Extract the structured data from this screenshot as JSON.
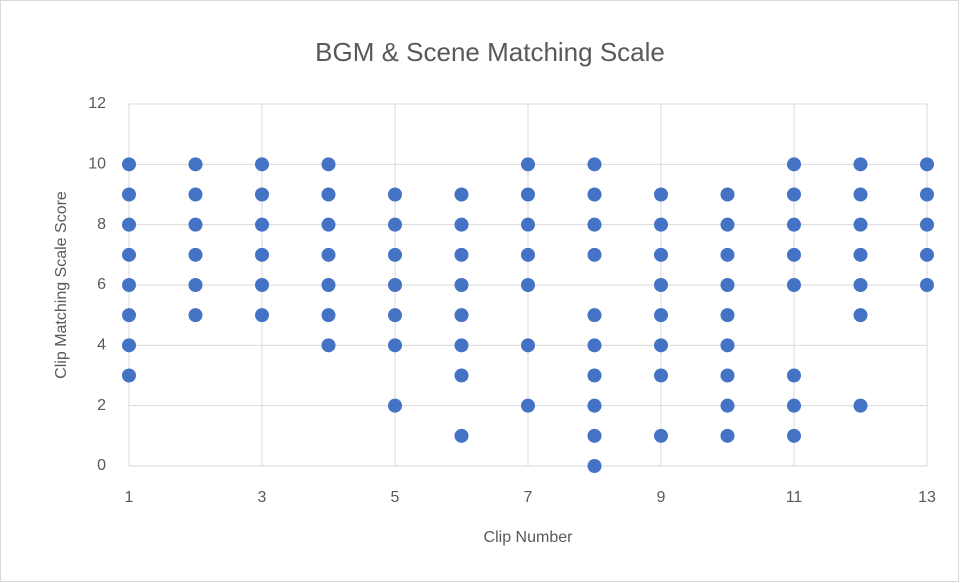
{
  "chart_data": {
    "type": "scatter",
    "title": "BGM & Scene Matching Scale",
    "xlabel": "Clip Number",
    "ylabel": "Clip Matching Scale Score",
    "series": [
      {
        "color": "#4472c4",
        "x": [
          1,
          1,
          1,
          1,
          1,
          1,
          1,
          1,
          2,
          2,
          2,
          2,
          2,
          2,
          3,
          3,
          3,
          3,
          3,
          3,
          4,
          4,
          4,
          4,
          4,
          4,
          4,
          5,
          5,
          5,
          5,
          5,
          5,
          5,
          6,
          6,
          6,
          6,
          6,
          6,
          6,
          6,
          7,
          7,
          7,
          7,
          7,
          7,
          7,
          8,
          8,
          8,
          8,
          8,
          8,
          8,
          8,
          8,
          8,
          9,
          9,
          9,
          9,
          9,
          9,
          9,
          9,
          10,
          10,
          10,
          10,
          10,
          10,
          10,
          10,
          10,
          11,
          11,
          11,
          11,
          11,
          11,
          11,
          11,
          12,
          12,
          12,
          12,
          12,
          12,
          12,
          13,
          13,
          13,
          13,
          13
        ],
        "values": [
          10,
          9,
          8,
          7,
          6,
          5,
          4,
          3,
          10,
          9,
          8,
          7,
          6,
          5,
          10,
          9,
          8,
          7,
          6,
          5,
          10,
          9,
          8,
          7,
          6,
          5,
          4,
          9,
          8,
          7,
          6,
          5,
          4,
          2,
          9,
          8,
          7,
          6,
          5,
          4,
          3,
          1,
          10,
          9,
          8,
          7,
          6,
          4,
          2,
          10,
          9,
          8,
          7,
          5,
          4,
          3,
          2,
          1,
          0,
          9,
          8,
          7,
          6,
          5,
          4,
          3,
          1,
          9,
          8,
          7,
          6,
          5,
          4,
          3,
          2,
          1,
          10,
          9,
          8,
          7,
          6,
          3,
          2,
          1,
          10,
          9,
          8,
          7,
          6,
          5,
          2,
          10,
          9,
          8,
          7,
          6
        ]
      }
    ],
    "xlim": [
      1,
      13
    ],
    "xticks": [
      1,
      3,
      5,
      7,
      9,
      11,
      13
    ],
    "ylim": [
      0,
      12
    ],
    "yticks": [
      0,
      2,
      4,
      6,
      8,
      10,
      12
    ],
    "grid": true
  }
}
